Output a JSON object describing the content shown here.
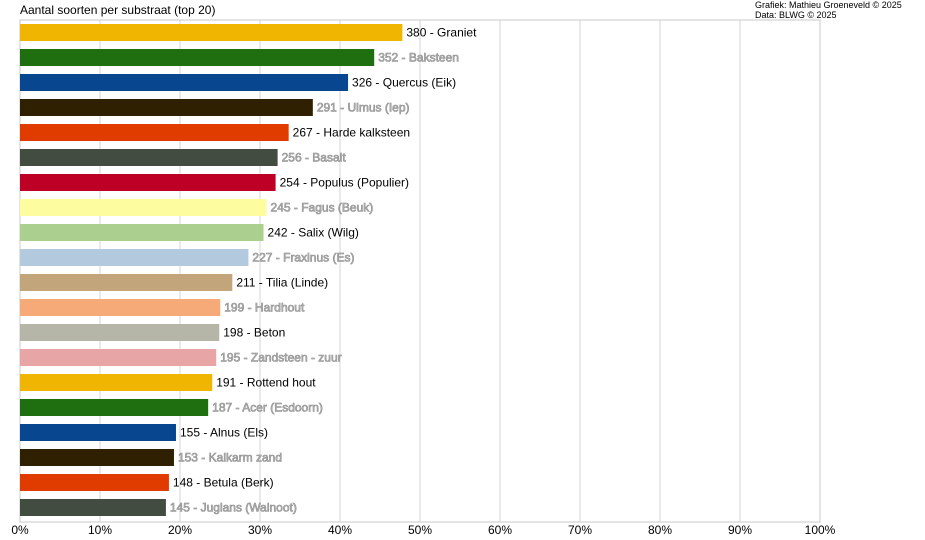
{
  "header": {
    "title": "Aantal soorten per substraat (top 20)",
    "credit_line1": "Grafiek: Mathieu Groeneveld © 2025",
    "credit_line2": "Data: BLWG © 2025"
  },
  "chart_data": {
    "type": "bar",
    "orientation": "horizontal",
    "title": "Aantal soorten per substraat (top 20)",
    "xlabel": "",
    "ylabel": "",
    "xlim": [
      0,
      100
    ],
    "x_unit": "%",
    "grid": true,
    "percent_of_total": 795,
    "xticks": [
      "0%",
      "10%",
      "20%",
      "30%",
      "40%",
      "50%",
      "60%",
      "70%",
      "80%",
      "90%",
      "100%"
    ],
    "categories": [
      "Graniet",
      "Baksteen",
      "Quercus (Eik)",
      "Ulmus (Iep)",
      "Harde kalksteen",
      "Basalt",
      "Populus (Populier)",
      "Fagus (Beuk)",
      "Salix (Wilg)",
      "Fraxinus (Es)",
      "Tilia (Linde)",
      "Hardhout",
      "Beton",
      "Zandsteen - zuur",
      "Rottend hout",
      "Acer (Esdoorn)",
      "Alnus (Els)",
      "Kalkarm zand",
      "Betula (Berk)",
      "Juglans (Walnoot)"
    ],
    "values": [
      380,
      352,
      326,
      291,
      267,
      256,
      254,
      245,
      242,
      227,
      211,
      199,
      198,
      195,
      191,
      187,
      155,
      153,
      148,
      145
    ],
    "labels": [
      "380 - Graniet",
      "352 - Baksteen",
      "326 - Quercus (Eik)",
      "291 - Ulmus (Iep)",
      "267 - Harde kalksteen",
      "256 - Basalt",
      "254 - Populus (Populier)",
      "245 - Fagus (Beuk)",
      "242 - Salix (Wilg)",
      "227 - Fraxinus (Es)",
      "211 - Tilia (Linde)",
      "199 - Hardhout",
      "198 - Beton",
      "195 - Zandsteen - zuur",
      "191 - Rottend hout",
      "187 - Acer (Esdoorn)",
      "155 - Alnus (Els)",
      "153 - Kalkarm zand",
      "148 - Betula (Berk)",
      "145 - Juglans (Walnoot)"
    ],
    "colors": [
      "#f0b500",
      "#1f6e0f",
      "#08478f",
      "#2e2000",
      "#e03c00",
      "#424c40",
      "#be0027",
      "#fdfda0",
      "#abcf8e",
      "#b3c9de",
      "#c3a57c",
      "#f6aa78",
      "#b5b6a8",
      "#e8a5a5",
      "#f0b500",
      "#1f6e0f",
      "#08478f",
      "#2e2000",
      "#e03c00",
      "#424c40"
    ],
    "label_styles": [
      "dark",
      "light",
      "dark",
      "light",
      "dark",
      "light",
      "dark",
      "light",
      "dark",
      "light",
      "dark",
      "light",
      "dark",
      "light",
      "dark",
      "light",
      "dark",
      "light",
      "dark",
      "light"
    ]
  }
}
